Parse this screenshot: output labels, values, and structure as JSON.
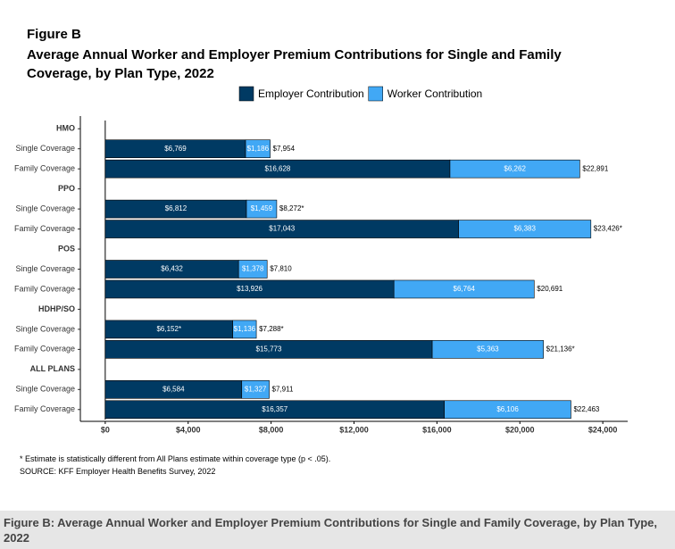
{
  "chart_data": {
    "type": "bar",
    "orientation": "horizontal",
    "stacked": true,
    "title": "Figure B",
    "subtitle": "Average Annual Worker and Employer Premium Contributions for Single and Family Coverage, by Plan Type, 2022",
    "categories": [
      "HMO",
      "Single Coverage",
      "Family Coverage",
      "PPO",
      "Single Coverage",
      "Family Coverage",
      "POS",
      "Single Coverage",
      "Family Coverage",
      "HDHP/SO",
      "Single Coverage",
      "Family Coverage",
      "ALL PLANS",
      "Single Coverage",
      "Family Coverage"
    ],
    "series": [
      {
        "name": "Employer Contribution",
        "color": "#003a63",
        "values": [
          null,
          6769,
          16628,
          null,
          6812,
          17043,
          null,
          6432,
          13926,
          null,
          6152,
          15773,
          null,
          6584,
          16357
        ],
        "value_labels": [
          null,
          "$6,769",
          "$16,628",
          null,
          "$6,812",
          "$17,043",
          null,
          "$6,432",
          "$13,926",
          null,
          "$6,152*",
          "$15,773",
          null,
          "$6,584",
          "$16,357"
        ]
      },
      {
        "name": "Worker Contribution",
        "color": "#41a8f5",
        "values": [
          null,
          1186,
          6262,
          null,
          1459,
          6383,
          null,
          1378,
          6764,
          null,
          1136,
          5363,
          null,
          1327,
          6106
        ],
        "value_labels": [
          null,
          "$1,186",
          "$6,262",
          null,
          "$1,459",
          "$6,383",
          null,
          "$1,378",
          "$6,764",
          null,
          "$1,136",
          "$5,363",
          null,
          "$1,327",
          "$6,106"
        ]
      }
    ],
    "totals": [
      null,
      7954,
      22891,
      null,
      8272,
      23426,
      null,
      7810,
      20691,
      null,
      7288,
      21136,
      null,
      7911,
      22463
    ],
    "total_labels": [
      null,
      "$7,954",
      "$22,891",
      null,
      "$8,272*",
      "$23,426*",
      null,
      "$7,810",
      "$20,691",
      null,
      "$7,288*",
      "$21,136*",
      null,
      "$7,911",
      "$22,463"
    ],
    "xlim": [
      -1200,
      25200
    ],
    "xticks": [
      {
        "value": 0,
        "label": "$0"
      },
      {
        "value": 4000,
        "label": "$4,000"
      },
      {
        "value": 8000,
        "label": "$8,000"
      },
      {
        "value": 12000,
        "label": "$12,000"
      },
      {
        "value": 16000,
        "label": "$16,000"
      },
      {
        "value": 20000,
        "label": "$20,000"
      },
      {
        "value": 24000,
        "label": "$24,000"
      }
    ],
    "legend": "top",
    "grid": false,
    "notes": [
      "* Estimate is statistically different from All Plans estimate within coverage type (p < .05).",
      "SOURCE: KFF Employer Health Benefits Survey, 2022"
    ],
    "caption": "Figure B: Average Annual Worker and Employer Premium Contributions for Single and Family Coverage, by Plan Type, 2022"
  }
}
